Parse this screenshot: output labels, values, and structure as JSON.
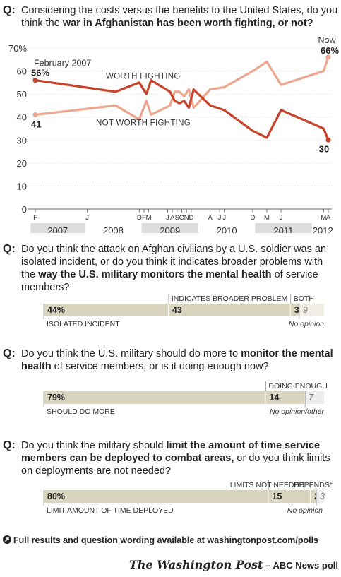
{
  "questions": [
    {
      "label": "Q:",
      "pre": "Considering the costs versus the benefits to the United States, do you think the ",
      "bold": "war in Afghanistan has been worth fighting, or not?",
      "post": ""
    },
    {
      "label": "Q:",
      "pre": "Do you think the attack on Afghan civilians by a U.S. soldier was an isolated incident, or do you think it indicates broader problems with the ",
      "bold": "way the U.S. military monitors the mental health",
      "post": " of service members?"
    },
    {
      "label": "Q:",
      "pre": "Do you think the U.S. military should do more to ",
      "bold": "monitor the mental health",
      "post": " of service members, or is it doing enough now?"
    },
    {
      "label": "Q:",
      "pre": "Do you think the military should ",
      "bold": "limit the amount of time service members can be deployed to combat areas,",
      "post": " or do you think limits on deployments are not needed?"
    }
  ],
  "chart_data": [
    {
      "type": "line",
      "yticks": [
        "0",
        "10",
        "20",
        "30",
        "40",
        "50",
        "60",
        "70%"
      ],
      "ylim": [
        0,
        70
      ],
      "x_month_labels": [
        {
          "t": 0,
          "label": "F"
        },
        {
          "t": 11,
          "label": "J"
        },
        {
          "t": 22,
          "label": "D"
        },
        {
          "t": 23,
          "label": "F"
        },
        {
          "t": 24,
          "label": "M"
        },
        {
          "t": 28,
          "label": "J"
        },
        {
          "t": 29,
          "label": "A"
        },
        {
          "t": 30,
          "label": "S"
        },
        {
          "t": 31,
          "label": "O"
        },
        {
          "t": 32,
          "label": "N"
        },
        {
          "t": 33,
          "label": "D"
        },
        {
          "t": 37,
          "label": "A"
        },
        {
          "t": 39,
          "label": "J"
        },
        {
          "t": 40,
          "label": "J"
        },
        {
          "t": 46,
          "label": "D"
        },
        {
          "t": 49,
          "label": "M"
        },
        {
          "t": 52,
          "label": "J"
        },
        {
          "t": 61,
          "label": "M"
        },
        {
          "t": 62,
          "label": "A"
        }
      ],
      "years": [
        {
          "label": "2007",
          "start": -1,
          "end": 10.5,
          "shaded": true
        },
        {
          "label": "2008",
          "start": 10.5,
          "end": 22.5,
          "shaded": false
        },
        {
          "label": "2009",
          "start": 22.5,
          "end": 34.5,
          "shaded": true
        },
        {
          "label": "2010",
          "start": 34.5,
          "end": 46.5,
          "shaded": false
        },
        {
          "label": "2011",
          "start": 46.5,
          "end": 58.5,
          "shaded": true
        },
        {
          "label": "2012",
          "start": 58.5,
          "end": 63.2,
          "shaded": false
        }
      ],
      "series": [
        {
          "name": "WORTH FIGHTING",
          "color": "#c8432b",
          "points": [
            [
              0,
              56
            ],
            [
              17,
              51
            ],
            [
              22,
              55
            ],
            [
              23.5,
              50
            ],
            [
              24.5,
              56
            ],
            [
              28.5,
              51
            ],
            [
              29.5,
              47
            ],
            [
              30.5,
              46
            ],
            [
              31.5,
              47
            ],
            [
              32.5,
              44
            ],
            [
              33.5,
              52
            ],
            [
              37,
              45
            ],
            [
              40,
              43
            ],
            [
              46,
              34
            ],
            [
              49,
              31
            ],
            [
              52,
              43
            ],
            [
              61,
              35
            ],
            [
              62,
              30
            ]
          ]
        },
        {
          "name": "NOT WORTH FIGHTING",
          "color": "#eca58e",
          "points": [
            [
              0,
              41
            ],
            [
              17,
              45
            ],
            [
              22,
              39
            ],
            [
              23.5,
              47
            ],
            [
              24.5,
              41
            ],
            [
              28.5,
              45
            ],
            [
              29.5,
              51
            ],
            [
              30.5,
              51
            ],
            [
              31.5,
              49
            ],
            [
              32.5,
              52
            ],
            [
              33.5,
              44
            ],
            [
              37,
              52
            ],
            [
              40,
              53
            ],
            [
              46,
              60
            ],
            [
              49,
              64
            ],
            [
              52,
              54
            ],
            [
              61,
              60
            ],
            [
              62,
              66
            ]
          ]
        }
      ],
      "annotations": {
        "start_label": "February 2007",
        "start_worth": "56%",
        "start_not": "41",
        "end_label": "Now",
        "end_not": "66%",
        "end_worth": "30"
      }
    },
    {
      "type": "bar",
      "segments": [
        {
          "value": 44,
          "display": "44%",
          "label": "ISOLATED INCIDENT",
          "color": "#d9d4be"
        },
        {
          "value": 43,
          "display": "43",
          "label": "INDICATES BROADER PROBLEM",
          "color": "#d9d4be"
        },
        {
          "value": 3,
          "display": "3",
          "label": "BOTH",
          "color": "#d9d4be"
        },
        {
          "value": 9,
          "display": "9",
          "label": "No opinion",
          "color": "#f0eee5"
        }
      ]
    },
    {
      "type": "bar",
      "segments": [
        {
          "value": 79,
          "display": "79%",
          "label": "SHOULD DO MORE",
          "color": "#d9d4be"
        },
        {
          "value": 14,
          "display": "14",
          "label": "DOING ENOUGH",
          "color": "#d9d4be"
        },
        {
          "value": 7,
          "display": "7",
          "label": "No opinion/other",
          "color": "#ececec"
        }
      ]
    },
    {
      "type": "bar",
      "segments": [
        {
          "value": 80,
          "display": "80%",
          "label": "LIMIT AMOUNT OF TIME DEPLOYED",
          "color": "#d9d4be"
        },
        {
          "value": 15,
          "display": "15",
          "label": "LIMITS NOT NEEDED",
          "color": "#d9d4be"
        },
        {
          "value": 2,
          "display": "2",
          "label": "DEPENDS*",
          "color": "#d9d4be"
        },
        {
          "value": 3,
          "display": "3",
          "label": "No opinion",
          "color": "#ececec"
        }
      ]
    }
  ],
  "footer": "Full results and question wording available at washingtonpost.com/polls",
  "credit": {
    "wp": "The Washington Post",
    "rest": " – ABC News poll"
  }
}
